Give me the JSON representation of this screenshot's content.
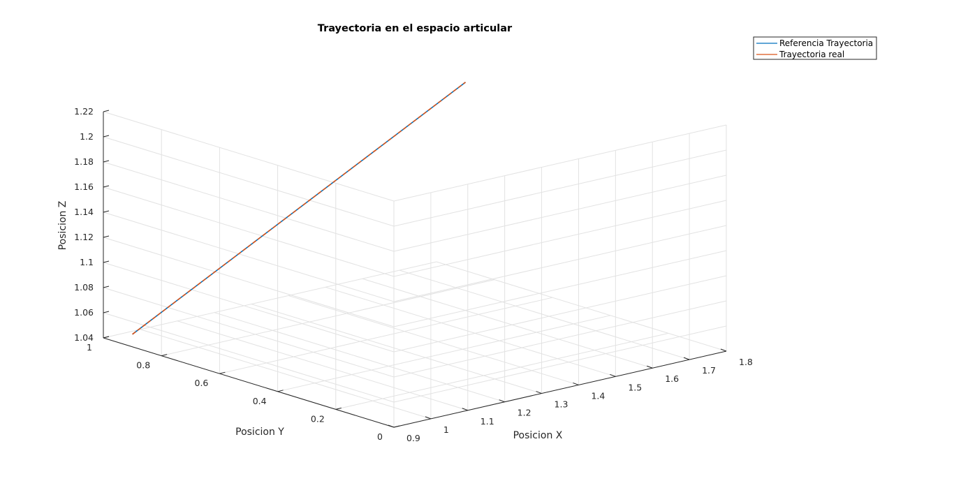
{
  "chart_data": {
    "type": "line",
    "projection": "3d",
    "title": "Trayectoria en el espacio articular",
    "xlabel": "Posicion X",
    "ylabel": "Posicion Y",
    "zlabel": "Posicion Z",
    "xlim": [
      0.9,
      1.8
    ],
    "ylim": [
      0,
      1
    ],
    "zlim": [
      1.04,
      1.22
    ],
    "xticks": [
      "0.9",
      "1",
      "1.1",
      "1.2",
      "1.3",
      "1.4",
      "1.5",
      "1.6",
      "1.7",
      "1.8"
    ],
    "yticks": [
      "0",
      "0.2",
      "0.4",
      "0.6",
      "0.8",
      "1"
    ],
    "zticks": [
      "1.04",
      "1.06",
      "1.08",
      "1.1",
      "1.12",
      "1.14",
      "1.16",
      "1.18",
      "1.2",
      "1.22"
    ],
    "grid": true,
    "legend_position": "top-right",
    "series": [
      {
        "name": "Referencia Trayectoria",
        "color": "#0072BD",
        "x": [
          0.9,
          1.8
        ],
        "y": [
          0.9,
          0.9
        ],
        "z": [
          1.05,
          1.19
        ]
      },
      {
        "name": "Trayectoria real",
        "color": "#D95319",
        "x": [
          0.9,
          1.8
        ],
        "y": [
          0.9,
          0.9
        ],
        "z": [
          1.05,
          1.19
        ]
      }
    ]
  }
}
